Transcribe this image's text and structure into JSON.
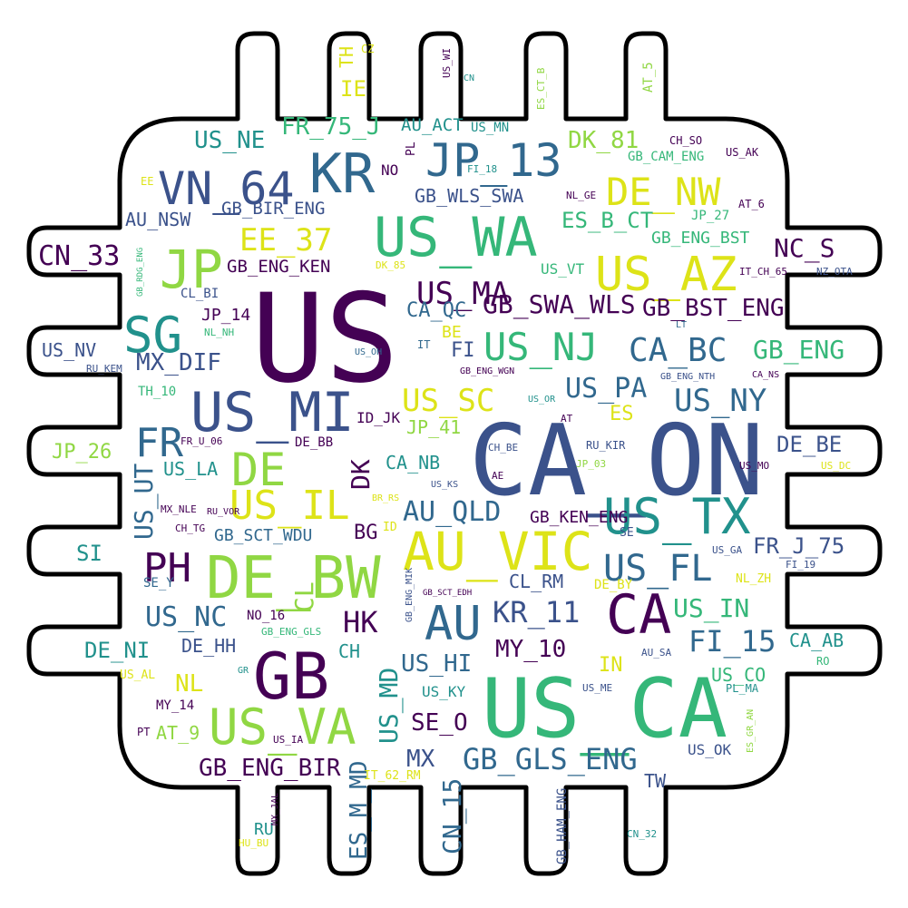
{
  "palette": {
    "dark_purple": "#440154",
    "indigo": "#3b528b",
    "blue": "#31688e",
    "teal": "#21918c",
    "green": "#35b779",
    "light_green": "#90d743",
    "yellow": "#dde318",
    "outline": "#000000",
    "background": "#ffffff"
  },
  "shape": "chip-with-pins",
  "words": [
    {
      "text": "US",
      "color": "#440154"
    },
    {
      "text": "CA_ON",
      "color": "#3b528b"
    },
    {
      "text": "US_CA",
      "color": "#35b779"
    },
    {
      "text": "GB",
      "color": "#440154"
    },
    {
      "text": "DE_BW",
      "color": "#90d743"
    },
    {
      "text": "AU_VIC",
      "color": "#dde318"
    },
    {
      "text": "US_WA",
      "color": "#35b779"
    },
    {
      "text": "US_MI",
      "color": "#3b528b"
    },
    {
      "text": "KR",
      "color": "#31688e"
    },
    {
      "text": "VN_64",
      "color": "#3b528b"
    },
    {
      "text": "JP_13",
      "color": "#31688e"
    },
    {
      "text": "US_AZ",
      "color": "#dde318"
    },
    {
      "text": "US_VA",
      "color": "#90d743"
    },
    {
      "text": "GB_GLS_ENG",
      "color": "#31688e"
    },
    {
      "text": "US_TX",
      "color": "#21918c"
    },
    {
      "text": "JP",
      "color": "#90d743"
    },
    {
      "text": "SG",
      "color": "#21918c"
    },
    {
      "text": "US_IL",
      "color": "#dde318"
    },
    {
      "text": "DE",
      "color": "#90d743"
    },
    {
      "text": "CA",
      "color": "#440154"
    },
    {
      "text": "AU",
      "color": "#31688e"
    },
    {
      "text": "US_NJ",
      "color": "#35b779"
    },
    {
      "text": "DE_NW",
      "color": "#dde318"
    },
    {
      "text": "US_FL",
      "color": "#31688e"
    },
    {
      "text": "PH",
      "color": "#440154"
    },
    {
      "text": "FR",
      "color": "#31688e"
    },
    {
      "text": "CA_BC",
      "color": "#31688e"
    },
    {
      "text": "US_MA",
      "color": "#440154"
    },
    {
      "text": "AU_QLD",
      "color": "#31688e"
    },
    {
      "text": "EE_37",
      "color": "#dde318"
    },
    {
      "text": "US_SC",
      "color": "#dde318"
    },
    {
      "text": "KR_11",
      "color": "#3b528b"
    },
    {
      "text": "US_NY",
      "color": "#31688e"
    },
    {
      "text": "US_PA",
      "color": "#31688e"
    },
    {
      "text": "US_IN",
      "color": "#35b779"
    },
    {
      "text": "FI_15",
      "color": "#31688e"
    },
    {
      "text": "CN_33",
      "color": "#440154"
    },
    {
      "text": "US_NC",
      "color": "#31688e"
    },
    {
      "text": "GB_ENG",
      "color": "#35b779"
    },
    {
      "text": "HK",
      "color": "#440154"
    },
    {
      "text": "US_MD",
      "color": "#21918c"
    },
    {
      "text": "CN_15",
      "color": "#31688e"
    },
    {
      "text": "DK",
      "color": "#440154"
    },
    {
      "text": "US_UT",
      "color": "#31688e"
    },
    {
      "text": "CL",
      "color": "#90d743"
    },
    {
      "text": "MX_DIF",
      "color": "#3b528b"
    },
    {
      "text": "GB_SWA_WLS",
      "color": "#440154"
    },
    {
      "text": "GB_BST_ENG",
      "color": "#440154"
    },
    {
      "text": "DK_81",
      "color": "#90d743"
    },
    {
      "text": "US_NE",
      "color": "#21918c"
    },
    {
      "text": "FR_75_J",
      "color": "#35b779"
    },
    {
      "text": "ES_B_CT",
      "color": "#35b779"
    },
    {
      "text": "NC_S",
      "color": "#440154"
    },
    {
      "text": "DE_BE",
      "color": "#3b528b"
    },
    {
      "text": "FR_J_75",
      "color": "#3b528b"
    },
    {
      "text": "US_HI",
      "color": "#31688e"
    },
    {
      "text": "MY_10",
      "color": "#440154"
    },
    {
      "text": "GB_ENG_BIR",
      "color": "#440154"
    },
    {
      "text": "ES_M_MD",
      "color": "#31688e"
    },
    {
      "text": "MX",
      "color": "#3b528b"
    },
    {
      "text": "SE_O",
      "color": "#440154"
    },
    {
      "text": "DE_NI",
      "color": "#21918c"
    },
    {
      "text": "DE_HH",
      "color": "#3b528b"
    },
    {
      "text": "NL",
      "color": "#dde318"
    },
    {
      "text": "CA_QC",
      "color": "#31688e"
    },
    {
      "text": "GB_WLS_SWA",
      "color": "#3b528b"
    },
    {
      "text": "AU_NSW",
      "color": "#3b528b"
    },
    {
      "text": "GB_BIR_ENG",
      "color": "#3b528b"
    },
    {
      "text": "GB_ENG_KEN",
      "color": "#440154"
    },
    {
      "text": "AU_ACT",
      "color": "#21918c"
    },
    {
      "text": "US_MN",
      "color": "#21918c"
    },
    {
      "text": "GB_ENG_BST",
      "color": "#35b779"
    },
    {
      "text": "JP_27",
      "color": "#35b779"
    },
    {
      "text": "IE",
      "color": "#dde318"
    },
    {
      "text": "TH",
      "color": "#dde318"
    },
    {
      "text": "NO",
      "color": "#440154"
    },
    {
      "text": "US_NV",
      "color": "#3b528b"
    },
    {
      "text": "JP_14",
      "color": "#440154"
    },
    {
      "text": "JP_26",
      "color": "#90d743"
    },
    {
      "text": "JP_41",
      "color": "#90d743"
    },
    {
      "text": "SI",
      "color": "#21918c"
    },
    {
      "text": "US_LA",
      "color": "#21918c"
    },
    {
      "text": "CA_NB",
      "color": "#21918c"
    },
    {
      "text": "ES",
      "color": "#dde318"
    },
    {
      "text": "BE",
      "color": "#dde318"
    },
    {
      "text": "FI",
      "color": "#3b528b"
    },
    {
      "text": "BG",
      "color": "#440154"
    },
    {
      "text": "CL_RM",
      "color": "#3b528b"
    },
    {
      "text": "GB_KEN_ENG",
      "color": "#440154"
    },
    {
      "text": "GB_SCT_WDU",
      "color": "#31688e"
    },
    {
      "text": "CA_AB",
      "color": "#21918c"
    },
    {
      "text": "US_CO",
      "color": "#35b779"
    },
    {
      "text": "IN",
      "color": "#dde318"
    },
    {
      "text": "AT_9",
      "color": "#90d743"
    },
    {
      "text": "CH",
      "color": "#21918c"
    },
    {
      "text": "TW",
      "color": "#3b528b"
    },
    {
      "text": "RU",
      "color": "#21918c"
    },
    {
      "text": "ID_JK",
      "color": "#440154"
    },
    {
      "text": "GB_CAM_ENG",
      "color": "#35b779"
    },
    {
      "text": "US_OK",
      "color": "#3b528b"
    },
    {
      "text": "GB_HAM_ENG",
      "color": "#3b528b"
    },
    {
      "text": "US_KY",
      "color": "#21918c"
    },
    {
      "text": "MY_14",
      "color": "#440154"
    },
    {
      "text": "NO_16",
      "color": "#440154"
    },
    {
      "text": "SE_Y",
      "color": "#31688e"
    },
    {
      "text": "DE_BB",
      "color": "#440154"
    },
    {
      "text": "TH_10",
      "color": "#35b779"
    },
    {
      "text": "CL_BI",
      "color": "#3b528b"
    },
    {
      "text": "US_VT",
      "color": "#35b779"
    },
    {
      "text": "CH_SO",
      "color": "#440154"
    },
    {
      "text": "US_AK",
      "color": "#440154"
    },
    {
      "text": "AT_6",
      "color": "#440154"
    },
    {
      "text": "AT_5",
      "color": "#90d743"
    },
    {
      "text": "CZ",
      "color": "#dde318"
    },
    {
      "text": "US_WI",
      "color": "#440154"
    },
    {
      "text": "CN",
      "color": "#21918c"
    },
    {
      "text": "ES_CT_B",
      "color": "#90d743"
    },
    {
      "text": "PL",
      "color": "#440154"
    },
    {
      "text": "FI_18",
      "color": "#21918c"
    },
    {
      "text": "EE",
      "color": "#dde318"
    },
    {
      "text": "NL_GE",
      "color": "#440154"
    },
    {
      "text": "GB_RDG_ENG",
      "color": "#35b779"
    },
    {
      "text": "DK_85",
      "color": "#dde318"
    },
    {
      "text": "IT_CH_65",
      "color": "#440154"
    },
    {
      "text": "NZ_OTA",
      "color": "#3b528b"
    },
    {
      "text": "NL_NH",
      "color": "#35b779"
    },
    {
      "text": "LT",
      "color": "#31688e"
    },
    {
      "text": "US_OH",
      "color": "#31688e"
    },
    {
      "text": "IT",
      "color": "#31688e"
    },
    {
      "text": "RU_KEM",
      "color": "#3b528b"
    },
    {
      "text": "GB_ENG_WGN",
      "color": "#440154"
    },
    {
      "text": "GB_ENG_NTH",
      "color": "#3b528b"
    },
    {
      "text": "CA_NS",
      "color": "#440154"
    },
    {
      "text": "US_OR",
      "color": "#21918c"
    },
    {
      "text": "AT",
      "color": "#440154"
    },
    {
      "text": "FR_U_06",
      "color": "#440154"
    },
    {
      "text": "RU_KIR",
      "color": "#3b528b"
    },
    {
      "text": "CH_BE",
      "color": "#3b528b"
    },
    {
      "text": "JP_03",
      "color": "#90d743"
    },
    {
      "text": "US_MO",
      "color": "#440154"
    },
    {
      "text": "US_DC",
      "color": "#dde318"
    },
    {
      "text": "RU_VOR",
      "color": "#440154"
    },
    {
      "text": "US_KS",
      "color": "#3b528b"
    },
    {
      "text": "AE",
      "color": "#440154"
    },
    {
      "text": "MX_NLE",
      "color": "#440154"
    },
    {
      "text": "BR_RS",
      "color": "#dde318"
    },
    {
      "text": "CH_TG",
      "color": "#440154"
    },
    {
      "text": "ID",
      "color": "#dde318"
    },
    {
      "text": "SE",
      "color": "#3b528b"
    },
    {
      "text": "US_GA",
      "color": "#3b528b"
    },
    {
      "text": "FI_19",
      "color": "#3b528b"
    },
    {
      "text": "NL_ZH",
      "color": "#dde318"
    },
    {
      "text": "DE_BY",
      "color": "#dde318"
    },
    {
      "text": "GB_SCT_EDH",
      "color": "#440154"
    },
    {
      "text": "GB_ENG_MIK",
      "color": "#3b528b"
    },
    {
      "text": "GB_ENG_GLS",
      "color": "#35b779"
    },
    {
      "text": "AU_SA",
      "color": "#3b528b"
    },
    {
      "text": "RO",
      "color": "#35b779"
    },
    {
      "text": "GR",
      "color": "#21918c"
    },
    {
      "text": "US_AL",
      "color": "#dde318"
    },
    {
      "text": "US_ME",
      "color": "#3b528b"
    },
    {
      "text": "PL_MA",
      "color": "#21918c"
    },
    {
      "text": "ES_GR_AN",
      "color": "#90d743"
    },
    {
      "text": "PT",
      "color": "#440154"
    },
    {
      "text": "US_IA",
      "color": "#440154"
    },
    {
      "text": "IT_62_RM",
      "color": "#dde318"
    },
    {
      "text": "MX_JAL",
      "color": "#440154"
    },
    {
      "text": "HU_BU",
      "color": "#dde318"
    },
    {
      "text": "CN_32",
      "color": "#21918c"
    }
  ]
}
